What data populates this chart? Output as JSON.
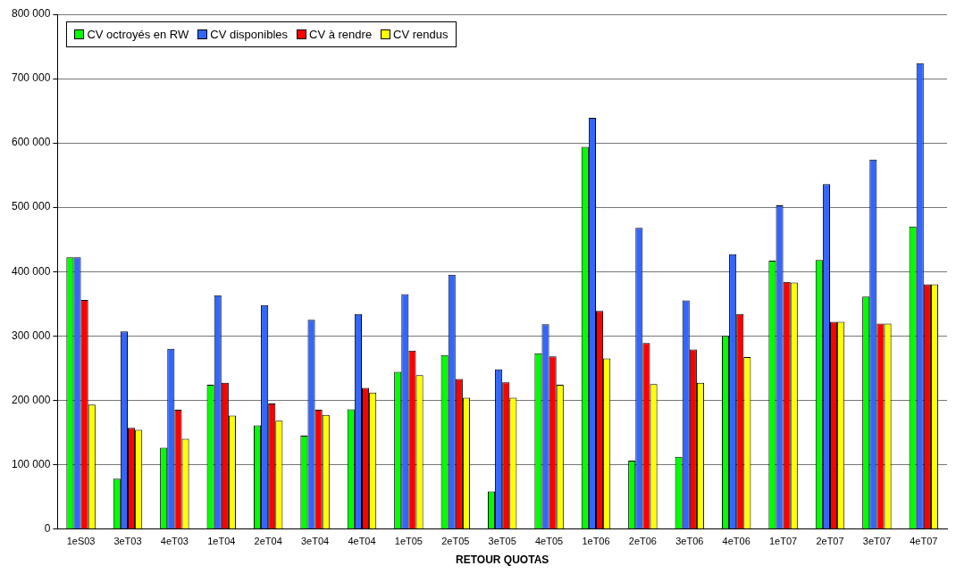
{
  "chart_data": {
    "type": "bar",
    "xlabel": "RETOUR QUOTAS",
    "categories": [
      "1eS03",
      "3eT03",
      "4eT03",
      "1eT04",
      "2eT04",
      "3eT04",
      "4eT04",
      "1eT05",
      "2eT05",
      "3eT05",
      "4eT05",
      "1eT06",
      "2eT06",
      "3eT06",
      "4eT06",
      "1eT07",
      "2eT07",
      "3eT07",
      "4eT07"
    ],
    "series": [
      {
        "name": "CV octroyés en RW",
        "color": "#00ff00",
        "values": [
          422000,
          78000,
          126000,
          224000,
          161000,
          145000,
          186000,
          244000,
          270000,
          58000,
          273000,
          594000,
          106000,
          112000,
          300000,
          417000,
          418000,
          361000,
          470000
        ]
      },
      {
        "name": "CV disponibles",
        "color": "#3366ff",
        "values": [
          422000,
          307000,
          280000,
          363000,
          348000,
          325000,
          334000,
          365000,
          395000,
          248000,
          318000,
          639000,
          468000,
          355000,
          427000,
          503000,
          536000,
          574000,
          724000
        ]
      },
      {
        "name": "CV à rendre",
        "color": "#ff0000",
        "values": [
          356000,
          157000,
          185000,
          227000,
          195000,
          185000,
          219000,
          277000,
          233000,
          228000,
          268000,
          339000,
          289000,
          279000,
          334000,
          384000,
          322000,
          319000,
          380000
        ]
      },
      {
        "name": "CV rendus",
        "color": "#ffff00",
        "values": [
          193000,
          154000,
          140000,
          176000,
          168000,
          177000,
          212000,
          239000,
          204000,
          204000,
          224000,
          265000,
          225000,
          227000,
          267000,
          383000,
          322000,
          319000,
          380000
        ]
      }
    ],
    "ylim": [
      0,
      800000
    ],
    "yticks": [
      {
        "value": 0,
        "label": "0"
      },
      {
        "value": 100000,
        "label": "100 000"
      },
      {
        "value": 200000,
        "label": "200 000"
      },
      {
        "value": 300000,
        "label": "300 000"
      },
      {
        "value": 400000,
        "label": "400 000"
      },
      {
        "value": 500000,
        "label": "500 000"
      },
      {
        "value": 600000,
        "label": "600 000"
      },
      {
        "value": 700000,
        "label": "700 000"
      },
      {
        "value": 800000,
        "label": "800 000"
      }
    ],
    "grid": "y",
    "legend": "top left"
  }
}
